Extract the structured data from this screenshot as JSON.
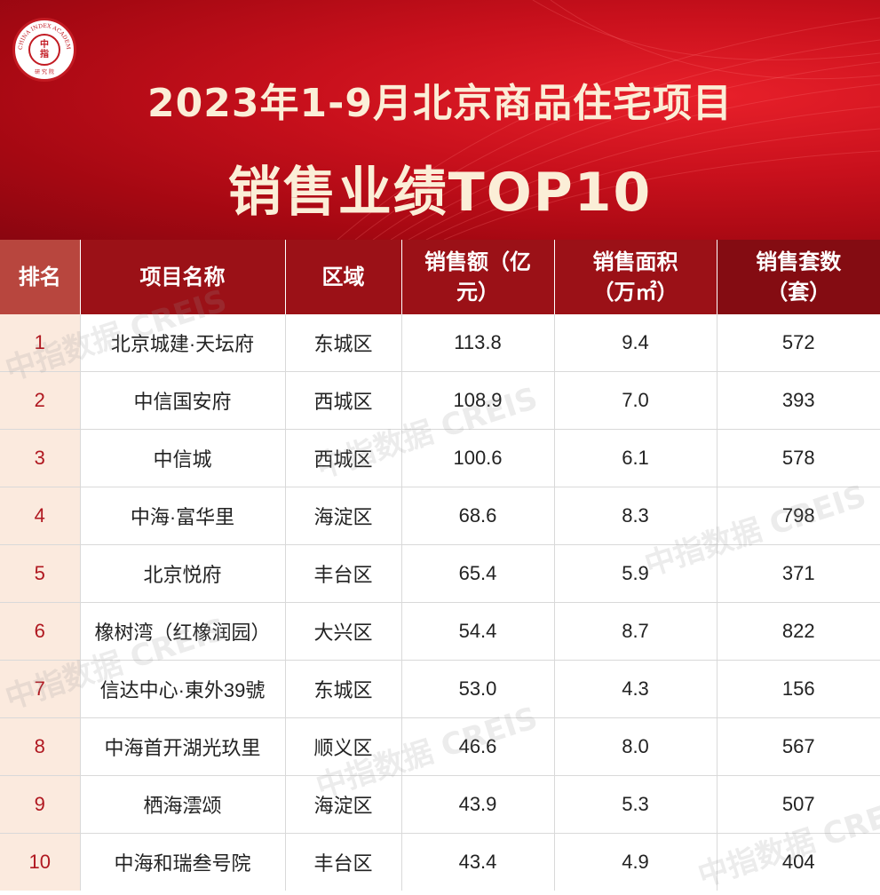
{
  "logo": {
    "ring_text": "CHINA INDEX ACADEMY",
    "center_top": "中",
    "center_bottom": "指",
    "bottom_text": "研 究 院"
  },
  "title_line1": "2023年1-9月北京商品住宅项目",
  "title_line2": "销售业绩TOP10",
  "table": {
    "headers": [
      "排名",
      "项目名称",
      "区域",
      "销售额（亿元）",
      "销售面积（万㎡）",
      "销售套数（套）"
    ],
    "rows": [
      {
        "rank": "1",
        "name": "北京城建·天坛府",
        "district": "东城区",
        "sales": "113.8",
        "area": "9.4",
        "units": "572"
      },
      {
        "rank": "2",
        "name": "中信国安府",
        "district": "西城区",
        "sales": "108.9",
        "area": "7.0",
        "units": "393"
      },
      {
        "rank": "3",
        "name": "中信城",
        "district": "西城区",
        "sales": "100.6",
        "area": "6.1",
        "units": "578"
      },
      {
        "rank": "4",
        "name": "中海·富华里",
        "district": "海淀区",
        "sales": "68.6",
        "area": "8.3",
        "units": "798"
      },
      {
        "rank": "5",
        "name": "北京悦府",
        "district": "丰台区",
        "sales": "65.4",
        "area": "5.9",
        "units": "371"
      },
      {
        "rank": "6",
        "name": "橡树湾（红橡润园）",
        "district": "大兴区",
        "sales": "54.4",
        "area": "8.7",
        "units": "822"
      },
      {
        "rank": "7",
        "name": "信达中心·東外39號",
        "district": "东城区",
        "sales": "53.0",
        "area": "4.3",
        "units": "156"
      },
      {
        "rank": "8",
        "name": "中海首开湖光玖里",
        "district": "顺义区",
        "sales": "46.6",
        "area": "8.0",
        "units": "567"
      },
      {
        "rank": "9",
        "name": "栖海澐颂",
        "district": "海淀区",
        "sales": "43.9",
        "area": "5.3",
        "units": "507"
      },
      {
        "rank": "10",
        "name": "中海和瑞叁号院",
        "district": "丰台区",
        "sales": "43.4",
        "area": "4.9",
        "units": "404"
      }
    ]
  },
  "watermark": "中指数据 CREIS",
  "colors": {
    "banner_red": "#c8101c",
    "header_dark": "#9b1117",
    "rank_bg": "#fbeade",
    "title_cream": "#fbeed7"
  }
}
